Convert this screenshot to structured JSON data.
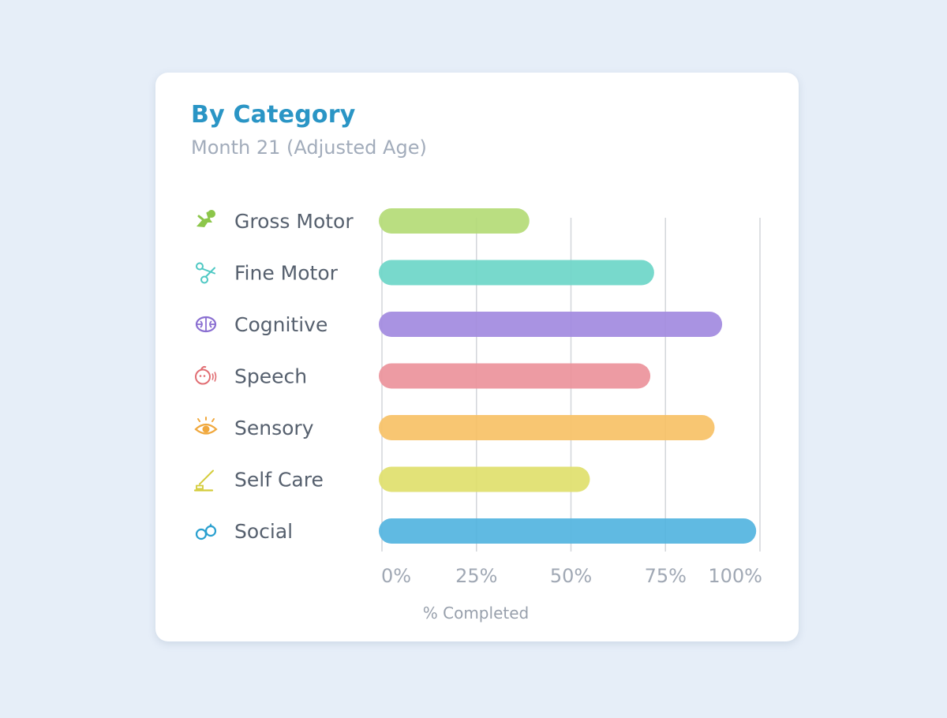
{
  "card": {
    "title": "By Category",
    "subtitle": "Month 21 (Adjusted Age)"
  },
  "chart_data": {
    "type": "bar",
    "orientation": "horizontal",
    "categories": [
      "Gross Motor",
      "Fine Motor",
      "Cognitive",
      "Speech",
      "Sensory",
      "Self Care",
      "Social"
    ],
    "values": [
      39,
      72,
      90,
      71,
      88,
      55,
      99
    ],
    "colors": [
      "#b4db76",
      "#6dd6c8",
      "#a28ae0",
      "#ec929b",
      "#f7c166",
      "#dfe06c",
      "#53b4df"
    ],
    "icons": [
      "crawling-baby-icon",
      "scissors-icon",
      "brain-icon",
      "speaking-head-icon",
      "eye-icon",
      "toothbrush-icon",
      "rings-icon"
    ],
    "icon_colors": [
      "#8cc64a",
      "#4ec8c3",
      "#8a6fd1",
      "#e16e73",
      "#f0a83d",
      "#d4cc3a",
      "#2aa0cf"
    ],
    "x_ticks": [
      "0%",
      "25%",
      "50%",
      "75%",
      "100%"
    ],
    "xlim": [
      0,
      100
    ],
    "xlabel": "% Completed",
    "ylabel": "",
    "grid": true
  }
}
